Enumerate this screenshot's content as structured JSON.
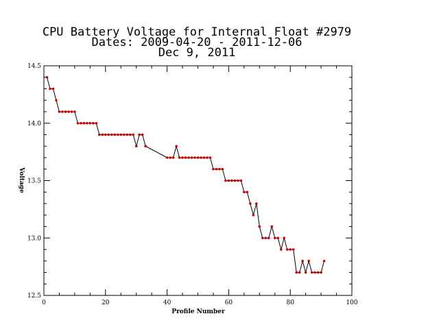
{
  "chart_data": {
    "type": "line",
    "title_lines": [
      "CPU Battery Voltage for Internal Float #2979",
      "Dates:  2009-04-20 -  2011-12-06",
      "Dec  9, 2011"
    ],
    "xlabel": "Profile Number",
    "ylabel": "Voltage",
    "xlim": [
      0,
      100
    ],
    "ylim": [
      12.5,
      14.5
    ],
    "x_ticks": [
      0,
      20,
      40,
      60,
      80,
      100
    ],
    "y_ticks": [
      12.5,
      13.0,
      13.5,
      14.0,
      14.5
    ],
    "x_tick_labels": [
      "0",
      "20",
      "40",
      "60",
      "80",
      "100"
    ],
    "y_tick_labels": [
      "12.5",
      "13.0",
      "13.5",
      "14.0",
      "14.5"
    ],
    "grid": false,
    "line_color": "#000000",
    "marker_color": "#cc0000",
    "series": [
      {
        "x": [
          1,
          2,
          3,
          4,
          5,
          6,
          7,
          8,
          9,
          10,
          11,
          12,
          13,
          14,
          15,
          16,
          17,
          18,
          19,
          20,
          21,
          22,
          23,
          24,
          25,
          26,
          27,
          28,
          29,
          30,
          31,
          32,
          33,
          40,
          41,
          42,
          43,
          44,
          45,
          46,
          47,
          48,
          49,
          50,
          51,
          52,
          53,
          54,
          55,
          56,
          57,
          58,
          59,
          60,
          61,
          62,
          63,
          64,
          65,
          66,
          67,
          68,
          69,
          70,
          71,
          72,
          73,
          74,
          75,
          76,
          77,
          78,
          79,
          80,
          81,
          82,
          83,
          84,
          85,
          86,
          87,
          88,
          89,
          90,
          91
        ],
        "y": [
          14.4,
          14.3,
          14.3,
          14.2,
          14.1,
          14.1,
          14.1,
          14.1,
          14.1,
          14.1,
          14.0,
          14.0,
          14.0,
          14.0,
          14.0,
          14.0,
          14.0,
          13.9,
          13.9,
          13.9,
          13.9,
          13.9,
          13.9,
          13.9,
          13.9,
          13.9,
          13.9,
          13.9,
          13.9,
          13.8,
          13.9,
          13.9,
          13.8,
          13.7,
          13.7,
          13.7,
          13.8,
          13.7,
          13.7,
          13.7,
          13.7,
          13.7,
          13.7,
          13.7,
          13.7,
          13.7,
          13.7,
          13.7,
          13.6,
          13.6,
          13.6,
          13.6,
          13.5,
          13.5,
          13.5,
          13.5,
          13.5,
          13.5,
          13.4,
          13.4,
          13.3,
          13.2,
          13.3,
          13.1,
          13.0,
          13.0,
          13.0,
          13.1,
          13.0,
          13.0,
          12.9,
          13.0,
          12.9,
          12.9,
          12.9,
          12.7,
          12.7,
          12.8,
          12.7,
          12.8,
          12.7,
          12.7,
          12.7,
          12.7,
          12.8
        ]
      }
    ]
  }
}
